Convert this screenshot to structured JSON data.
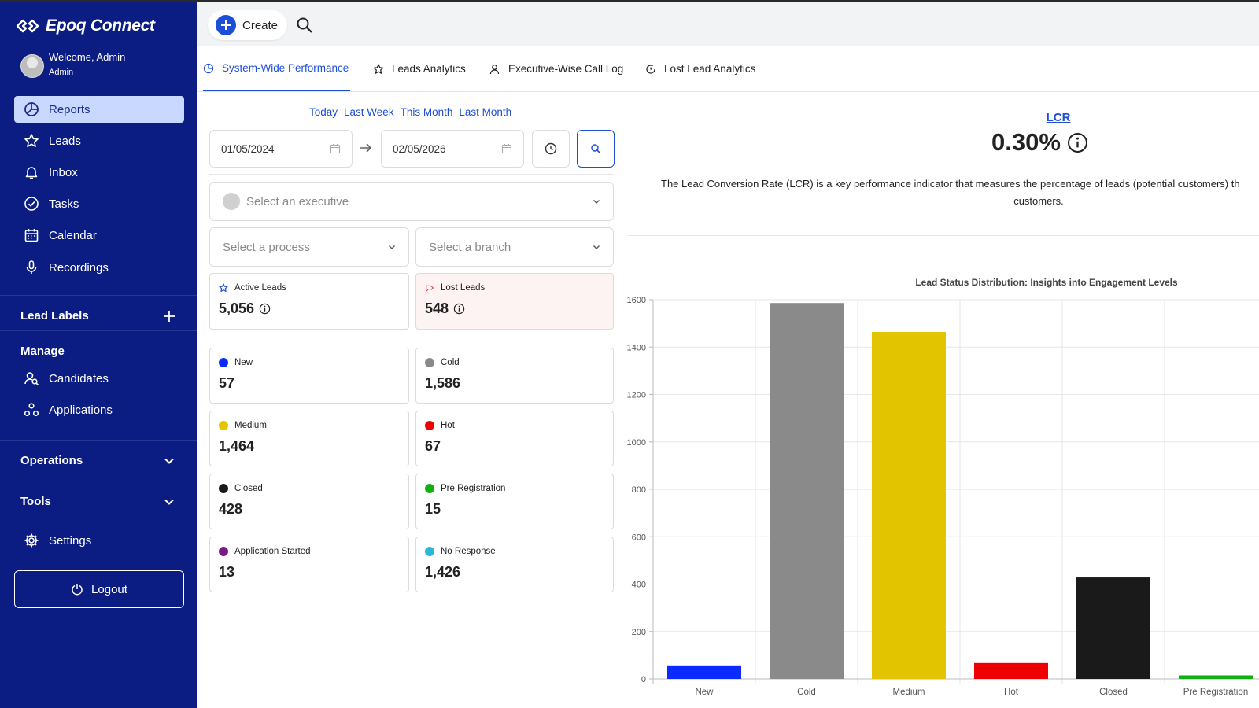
{
  "brand": {
    "name": "Epoq Connect"
  },
  "user": {
    "welcome": "Welcome, Admin",
    "role": "Admin"
  },
  "nav": [
    {
      "label": "Reports",
      "icon": "chart-pie-icon",
      "active": true
    },
    {
      "label": "Leads",
      "icon": "star-icon"
    },
    {
      "label": "Inbox",
      "icon": "bell-icon"
    },
    {
      "label": "Tasks",
      "icon": "check-circle-icon"
    },
    {
      "label": "Calendar",
      "icon": "calendar-icon"
    },
    {
      "label": "Recordings",
      "icon": "microphone-icon"
    }
  ],
  "sections": {
    "lead_labels": "Lead Labels",
    "manage": "Manage",
    "operations": "Operations",
    "tools": "Tools"
  },
  "manage_items": [
    {
      "label": "Candidates",
      "icon": "candidates-icon"
    },
    {
      "label": "Applications",
      "icon": "applications-icon"
    }
  ],
  "settings": "Settings",
  "logout": "Logout",
  "topbar": {
    "create": "Create"
  },
  "tabs": [
    {
      "label": "System-Wide Performance",
      "active": true
    },
    {
      "label": "Leads Analytics"
    },
    {
      "label": "Executive-Wise Call Log"
    },
    {
      "label": "Lost Lead Analytics"
    }
  ],
  "quick_ranges": [
    "Today",
    "Last Week",
    "This Month",
    "Last Month"
  ],
  "date_range": {
    "start": "01/05/2024",
    "end": "02/05/2026"
  },
  "filters": {
    "executive_placeholder": "Select an executive",
    "process_placeholder": "Select a process",
    "branch_placeholder": "Select a branch"
  },
  "summary": {
    "active_label": "Active Leads",
    "active_value": "5,056",
    "lost_label": "Lost Leads",
    "lost_value": "548"
  },
  "status_cards": [
    {
      "label": "New",
      "value": "57",
      "color": "#0a2bff"
    },
    {
      "label": "Cold",
      "value": "1,586",
      "color": "#8a8a8a"
    },
    {
      "label": "Medium",
      "value": "1,464",
      "color": "#e2c400"
    },
    {
      "label": "Hot",
      "value": "67",
      "color": "#ee0000"
    },
    {
      "label": "Closed",
      "value": "428",
      "color": "#1a1a1a"
    },
    {
      "label": "Pre Registration",
      "value": "15",
      "color": "#10b010"
    },
    {
      "label": "Application Started",
      "value": "13",
      "color": "#7a1a8a"
    },
    {
      "label": "No Response",
      "value": "1,426",
      "color": "#2ab8d8"
    }
  ],
  "lcr": {
    "link": "LCR",
    "value": "0.30%",
    "description_line1": "The Lead Conversion Rate (LCR) is a key performance indicator that measures the percentage of leads (potential customers) th",
    "description_line2": "customers."
  },
  "chart_data": {
    "type": "bar",
    "title": "Lead Status Distribution: Insights into Engagement Levels",
    "categories": [
      "New",
      "Cold",
      "Medium",
      "Hot",
      "Closed",
      "Pre Registration"
    ],
    "values": [
      57,
      1586,
      1464,
      67,
      428,
      15
    ],
    "colors": [
      "#0a2bff",
      "#8a8a8a",
      "#e2c400",
      "#ee0000",
      "#1a1a1a",
      "#10b010"
    ],
    "yticks": [
      "0",
      "200",
      "400",
      "600",
      "800",
      "1000",
      "1200",
      "1400",
      "1600"
    ],
    "ylim": [
      0,
      1600
    ],
    "grid": true
  }
}
